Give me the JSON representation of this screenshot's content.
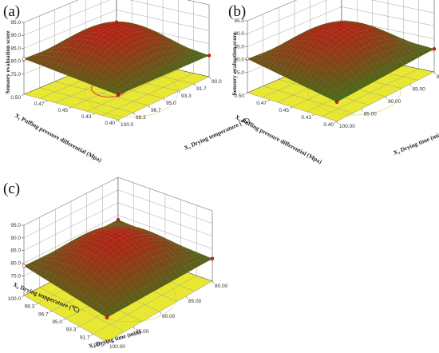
{
  "chart_data": [
    {
      "type": "surface",
      "panel_label": "(a)",
      "zlabel": "Sensory evaluation score",
      "zticks": [
        "75.0",
        "80.0",
        "85.0",
        "90.0",
        "95.0"
      ],
      "zlim": [
        75,
        95
      ],
      "x_axis": {
        "label": "X₁ Puffing pressure differential (Mpa)",
        "ticks": [
          "0.50",
          "0.47",
          "0.45",
          "0.43",
          "0.40"
        ],
        "range": [
          0.4,
          0.5
        ]
      },
      "y_axis": {
        "label": "X₂ Drying temperature (℃)",
        "ticks": [
          "100.0",
          "98.3",
          "96.7",
          "95.0",
          "93.3",
          "91.7",
          "90.0"
        ],
        "range": [
          90.0,
          100.0
        ]
      },
      "peak": {
        "x": 0.45,
        "y": 95.0,
        "z": 91.0
      },
      "corners": [
        {
          "x": 0.5,
          "y": 100.0,
          "z": 86.0
        },
        {
          "x": 0.4,
          "y": 100.0,
          "z": 80.0
        },
        {
          "x": 0.4,
          "y": 90.0,
          "z": 78.0
        },
        {
          "x": 0.5,
          "y": 90.0,
          "z": 85.0
        }
      ],
      "contour_floor_color": "#e8e832",
      "contour_ring_color": "#e05030"
    },
    {
      "type": "surface",
      "panel_label": "(b)",
      "zlabel": "Sensory evaluation score",
      "zticks": [
        "75.0",
        "80.0",
        "85.0",
        "90.0",
        "95.0"
      ],
      "zlim": [
        75,
        95
      ],
      "x_axis": {
        "label": "X₁ Puffing pressure differential (Mpa)",
        "ticks": [
          "0.50",
          "0.47",
          "0.45",
          "0.43",
          "0.40"
        ],
        "range": [
          0.4,
          0.5
        ]
      },
      "y_axis": {
        "label": "X₃ Drying time (min)",
        "ticks": [
          "100.00",
          "95.00",
          "90.00",
          "85.00",
          "80.00"
        ],
        "range": [
          80.0,
          100.0
        ]
      },
      "peak": {
        "x": 0.45,
        "y": 90.0,
        "z": 91.0
      },
      "corners": [
        {
          "x": 0.5,
          "y": 100.0,
          "z": 85.0
        },
        {
          "x": 0.4,
          "y": 100.0,
          "z": 77.0
        },
        {
          "x": 0.4,
          "y": 80.0,
          "z": 79.0
        },
        {
          "x": 0.5,
          "y": 80.0,
          "z": 83.0
        }
      ],
      "contour_floor_color": "#e8e832",
      "contour_ring_color": "#e05030"
    },
    {
      "type": "surface",
      "panel_label": "(c)",
      "zlabel": "",
      "zticks": [
        "75.0",
        "80.0",
        "85.0",
        "90.0",
        "95.0"
      ],
      "zlim": [
        75,
        95
      ],
      "x_axis": {
        "label": "X₂ Drying temperature (℃)",
        "ticks": [
          "100.0",
          "98.3",
          "96.7",
          "95.0",
          "93.3",
          "91.7",
          "90.0"
        ],
        "range": [
          90.0,
          100.0
        ]
      },
      "y_axis": {
        "label": "X₃ Drying time (min)",
        "ticks": [
          "100.00",
          "95.00",
          "90.00",
          "85.00",
          "80.00"
        ],
        "range": [
          80.0,
          100.0
        ]
      },
      "peak": {
        "x": 95.0,
        "y": 90.0,
        "z": 91.0
      },
      "corners": [
        {
          "x": 100.0,
          "y": 100.0,
          "z": 83.0
        },
        {
          "x": 90.0,
          "y": 100.0,
          "z": 80.0
        },
        {
          "x": 90.0,
          "y": 80.0,
          "z": 79.0
        },
        {
          "x": 100.0,
          "y": 80.0,
          "z": 82.0
        }
      ],
      "contour_floor_color": "#e8e832",
      "contour_ring_color": "#e05030"
    }
  ]
}
